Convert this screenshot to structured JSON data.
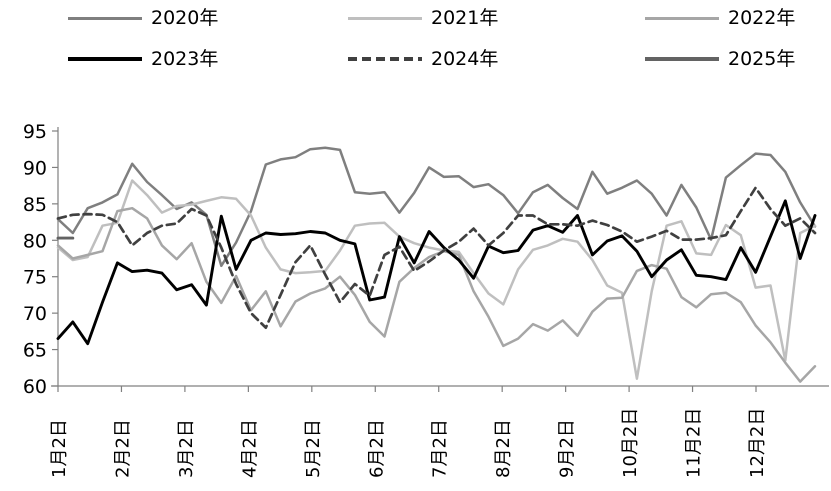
{
  "chart_data": {
    "type": "line",
    "title": "",
    "legend": {
      "position": "top",
      "rows": 2,
      "columns": 3
    },
    "x_axis": {
      "tick_labels": [
        "1月2日",
        "2月2日",
        "3月2日",
        "4月2日",
        "5月2日",
        "6月2日",
        "7月2日",
        "8月2日",
        "9月2日",
        "10月2日",
        "11月2日",
        "12月2日"
      ],
      "points_per_series": 52,
      "frequency": "weekly"
    },
    "y_axis": {
      "min": 60,
      "max": 95,
      "step": 5,
      "ticks": [
        60,
        65,
        70,
        75,
        80,
        85,
        90,
        95
      ]
    },
    "series": [
      {
        "name": "2020年",
        "color": "#7f7f7f",
        "line_style": "solid",
        "line_width": 2.5,
        "values": [
          82.9,
          81.0,
          84.4,
          85.2,
          86.3,
          90.5,
          88.0,
          86.2,
          84.3,
          85.2,
          83.5,
          76.5,
          79.7,
          84.0,
          90.4,
          91.1,
          91.4,
          92.5,
          92.7,
          92.4,
          86.6,
          86.4,
          86.6,
          83.8,
          86.5,
          90.0,
          88.7,
          88.8,
          87.3,
          87.7,
          86.2,
          83.7,
          86.6,
          87.6,
          85.8,
          84.3,
          89.4,
          86.4,
          87.2,
          88.2,
          86.4,
          83.4,
          87.6,
          84.5,
          80.1,
          88.6,
          90.3,
          91.9,
          91.7,
          89.4,
          85.2,
          81.9
        ]
      },
      {
        "name": "2021年",
        "color": "#bfbfbf",
        "line_style": "solid",
        "line_width": 2.5,
        "values": [
          79.0,
          77.3,
          77.7,
          82.0,
          82.4,
          88.2,
          86.2,
          83.8,
          84.7,
          84.9,
          85.4,
          85.9,
          85.7,
          83.4,
          79.0,
          76.0,
          75.5,
          75.6,
          75.8,
          78.6,
          82.0,
          82.3,
          82.4,
          80.5,
          79.6,
          79.0,
          78.6,
          78.4,
          75.5,
          72.7,
          71.2,
          76.0,
          78.7,
          79.3,
          80.2,
          79.8,
          77.3,
          73.8,
          72.8,
          61.0,
          73.0,
          82.0,
          82.6,
          78.2,
          78.0,
          82.1,
          80.7,
          73.5,
          73.8,
          63.5,
          81.0,
          82.0
        ]
      },
      {
        "name": "2022年",
        "color": "#a6a6a6",
        "line_style": "solid",
        "line_width": 2.5,
        "values": [
          79.3,
          77.5,
          78.0,
          78.5,
          84.0,
          84.4,
          83.0,
          79.3,
          77.4,
          79.6,
          74.3,
          71.4,
          75.1,
          70.4,
          73.0,
          68.2,
          71.6,
          72.7,
          73.4,
          75.0,
          72.5,
          68.8,
          66.8,
          74.3,
          76.2,
          77.7,
          78.5,
          78.0,
          73.0,
          69.5,
          65.5,
          66.5,
          68.5,
          67.6,
          69.0,
          66.9,
          70.2,
          72.0,
          72.1,
          75.8,
          76.6,
          76.1,
          72.2,
          70.8,
          72.6,
          72.8,
          71.5,
          68.3,
          66.0,
          63.2,
          60.6,
          62.7
        ]
      },
      {
        "name": "2023年",
        "color": "#000000",
        "line_style": "solid",
        "line_width": 2.9,
        "values": [
          66.5,
          68.8,
          65.8,
          71.5,
          76.9,
          75.7,
          75.9,
          75.5,
          73.2,
          73.9,
          71.1,
          83.3,
          76.0,
          80.0,
          81.0,
          80.8,
          80.9,
          81.2,
          81.0,
          80.0,
          79.5,
          71.8,
          72.2,
          80.5,
          76.9,
          81.2,
          79.0,
          77.3,
          74.8,
          79.2,
          78.3,
          78.6,
          81.4,
          82.0,
          81.1,
          83.4,
          78.0,
          79.9,
          80.6,
          78.5,
          75.0,
          77.3,
          78.7,
          75.2,
          75.0,
          74.6,
          79.0,
          75.6,
          80.5,
          85.4,
          77.5,
          83.4
        ]
      },
      {
        "name": "2024年",
        "color": "#404040",
        "line_style": "dashed",
        "line_width": 2.7,
        "values": [
          83.0,
          83.5,
          83.6,
          83.5,
          82.5,
          79.3,
          81.0,
          82.0,
          82.3,
          84.3,
          83.4,
          79.0,
          74.0,
          70.0,
          68.0,
          72.5,
          77.0,
          79.3,
          75.3,
          71.5,
          74.0,
          72.4,
          78.0,
          79.1,
          75.8,
          77.1,
          78.6,
          79.8,
          81.6,
          79.3,
          81.0,
          83.4,
          83.4,
          82.2,
          82.2,
          82.0,
          82.7,
          82.1,
          81.2,
          79.8,
          80.5,
          81.3,
          80.1,
          80.1,
          80.3,
          80.7,
          84.0,
          87.2,
          84.3,
          82.0,
          83.0,
          81.0
        ]
      },
      {
        "name": "2025年",
        "color": "#636363",
        "line_style": "solid",
        "line_width": 2.9,
        "values": [
          80.3,
          80.3
        ]
      }
    ]
  },
  "colors": {
    "axis": "#808080",
    "background": "#ffffff",
    "text": "#000000"
  }
}
